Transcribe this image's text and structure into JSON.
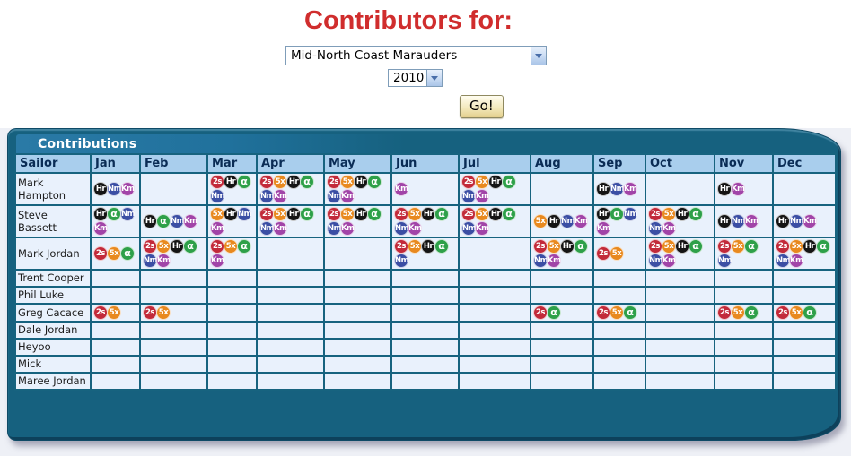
{
  "header": {
    "title": "Contributors for:",
    "team_select": {
      "selected": "Mid-North Coast Marauders"
    },
    "year_select": {
      "selected": "2010"
    },
    "go_button": "Go!"
  },
  "panel": {
    "title": "Contributions"
  },
  "colors": {
    "title_red": "#d02d2d",
    "panel_teal": "#16617f",
    "header_row_bg": "#a9ceed",
    "cell_bg": "#e9f1fc",
    "badge_2s": "#c22a3a",
    "badge_5x": "#e8891f",
    "badge_hr": "#141414",
    "badge_alpha": "#2ea049",
    "badge_nm": "#3b4ea4",
    "badge_km": "#a144a8"
  },
  "table": {
    "columns": [
      "Sailor",
      "Jan",
      "Feb",
      "Mar",
      "Apr",
      "May",
      "Jun",
      "Jul",
      "Aug",
      "Sep",
      "Oct",
      "Nov",
      "Dec"
    ],
    "badge_colors": {
      "2s": "#c22a3a",
      "5x": "#e8891f",
      "Hr": "#141414",
      "α": "#2ea049",
      "Nm": "#3b4ea4",
      "Km": "#a144a8"
    },
    "rows": [
      {
        "name": "Mark Hampton",
        "cells": [
          [
            "Hr",
            "Nm",
            "Km"
          ],
          [],
          [
            "2s",
            "Hr",
            "α",
            "Nm"
          ],
          [
            "2s",
            "5x",
            "Hr",
            "α",
            "Nm",
            "Km"
          ],
          [
            "2s",
            "5x",
            "Hr",
            "α",
            "Nm",
            "Km"
          ],
          [
            "Km"
          ],
          [
            "2s",
            "5x",
            "Hr",
            "α",
            "Nm",
            "Km"
          ],
          [],
          [
            "Hr",
            "Nm",
            "Km"
          ],
          [],
          [
            "Hr",
            "Km"
          ],
          []
        ]
      },
      {
        "name": "Steve Bassett",
        "cells": [
          [
            "Hr",
            "α",
            "Nm",
            "Km"
          ],
          [
            "Hr",
            "α",
            "Nm",
            "Km"
          ],
          [
            "5x",
            "Hr",
            "Nm",
            "Km"
          ],
          [
            "2s",
            "5x",
            "Hr",
            "α",
            "Nm",
            "Km"
          ],
          [
            "2s",
            "5x",
            "Hr",
            "α",
            "Nm",
            "Km"
          ],
          [
            "2s",
            "5x",
            "Hr",
            "α",
            "Nm",
            "Km"
          ],
          [
            "2s",
            "5x",
            "Hr",
            "α",
            "Nm",
            "Km"
          ],
          [
            "5x",
            "Hr",
            "Nm",
            "Km"
          ],
          [
            "Hr",
            "α",
            "Nm",
            "Km"
          ],
          [
            "2s",
            "5x",
            "Hr",
            "α",
            "Nm",
            "Km"
          ],
          [
            "Hr",
            "Nm",
            "Km"
          ],
          [
            "Hr",
            "Nm",
            "Km"
          ]
        ]
      },
      {
        "name": "Mark Jordan",
        "cells": [
          [
            "2s",
            "5x",
            "α"
          ],
          [
            "2s",
            "5x",
            "Hr",
            "α",
            "Nm",
            "Km"
          ],
          [
            "2s",
            "5x",
            "α",
            "Km"
          ],
          [],
          [],
          [
            "2s",
            "5x",
            "Hr",
            "α",
            "Nm"
          ],
          [],
          [
            "2s",
            "5x",
            "Hr",
            "α",
            "Nm",
            "Km"
          ],
          [
            "2s",
            "5x"
          ],
          [
            "2s",
            "5x",
            "Hr",
            "α",
            "Nm",
            "Km"
          ],
          [
            "2s",
            "5x",
            "α",
            "Nm"
          ],
          [
            "2s",
            "5x",
            "Hr",
            "α",
            "Nm",
            "Km"
          ]
        ]
      },
      {
        "name": "Trent Cooper",
        "cells": [
          [],
          [],
          [],
          [],
          [],
          [],
          [],
          [],
          [],
          [],
          [],
          []
        ]
      },
      {
        "name": "Phil Luke",
        "cells": [
          [],
          [],
          [],
          [],
          [],
          [],
          [],
          [],
          [],
          [],
          [],
          []
        ]
      },
      {
        "name": "Greg Cacace",
        "cells": [
          [
            "2s",
            "5x"
          ],
          [
            "2s",
            "5x"
          ],
          [],
          [],
          [],
          [],
          [],
          [
            "2s",
            "α"
          ],
          [
            "2s",
            "5x",
            "α"
          ],
          [],
          [
            "2s",
            "5x",
            "α"
          ],
          [
            "2s",
            "5x",
            "α"
          ]
        ]
      },
      {
        "name": "Dale Jordan",
        "cells": [
          [],
          [],
          [],
          [],
          [],
          [],
          [],
          [],
          [],
          [],
          [],
          []
        ]
      },
      {
        "name": "Heyoo",
        "cells": [
          [],
          [],
          [],
          [],
          [],
          [],
          [],
          [],
          [],
          [],
          [],
          []
        ]
      },
      {
        "name": "Mick",
        "cells": [
          [],
          [],
          [],
          [],
          [],
          [],
          [],
          [],
          [],
          [],
          [],
          []
        ]
      },
      {
        "name": "Maree Jordan",
        "cells": [
          [],
          [],
          [],
          [],
          [],
          [],
          [],
          [],
          [],
          [],
          [],
          []
        ]
      }
    ]
  }
}
